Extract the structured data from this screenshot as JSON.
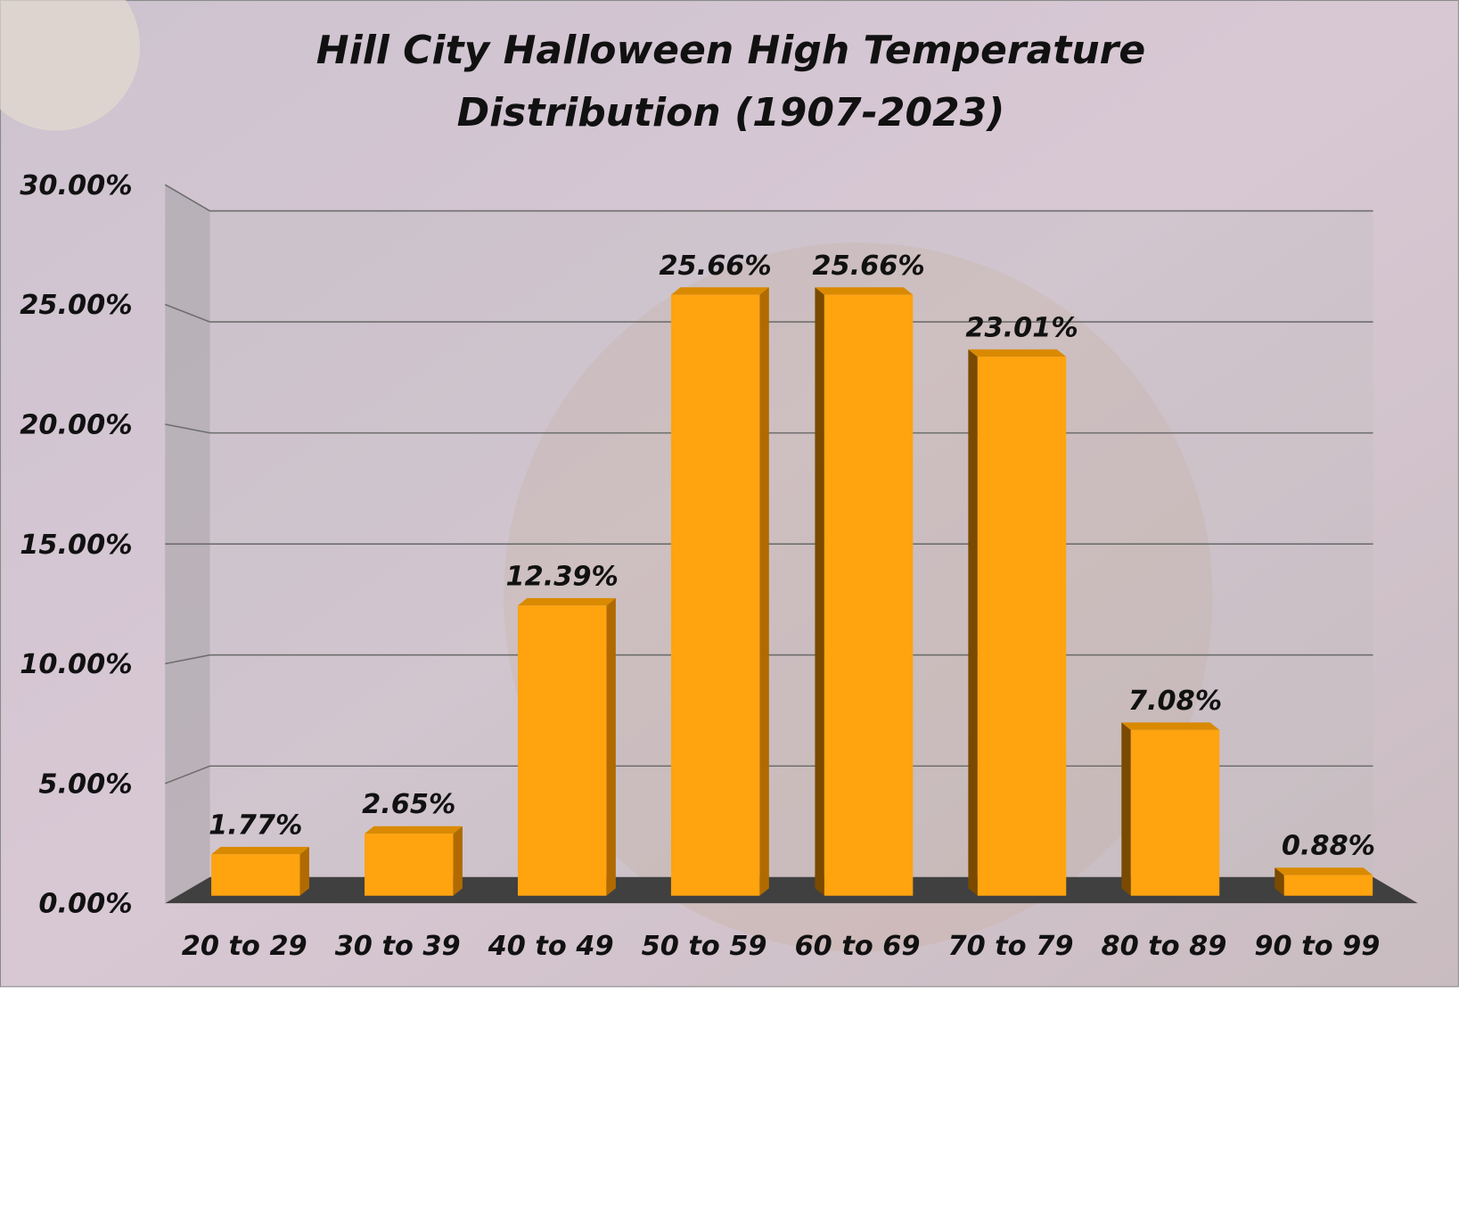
{
  "chart_data": {
    "type": "bar3d",
    "title": "Hill City Halloween High Temperature Distribution (1907-2023)",
    "categories": [
      "20 to 29",
      "30 to 39",
      "40 to 49",
      "50 to 59",
      "60 to 69",
      "70 to 79",
      "80 to 89",
      "90 to 99"
    ],
    "values": [
      1.77,
      2.65,
      12.39,
      25.66,
      25.66,
      23.01,
      7.08,
      0.88
    ],
    "value_labels": [
      "1.77%",
      "2.65%",
      "12.39%",
      "25.66%",
      "25.66%",
      "23.01%",
      "7.08%",
      "0.88%"
    ],
    "color": "#ffa30f",
    "ylim": [
      0,
      30
    ],
    "yticks": [
      {
        "value": 0,
        "label": "0.00%"
      },
      {
        "value": 5,
        "label": "5.00%"
      },
      {
        "value": 10,
        "label": "10.00%"
      },
      {
        "value": 15,
        "label": "15.00%"
      },
      {
        "value": 20,
        "label": "20.00%"
      },
      {
        "value": 25,
        "label": "25.00%"
      },
      {
        "value": 30,
        "label": "30.00%"
      }
    ],
    "grid": true
  }
}
